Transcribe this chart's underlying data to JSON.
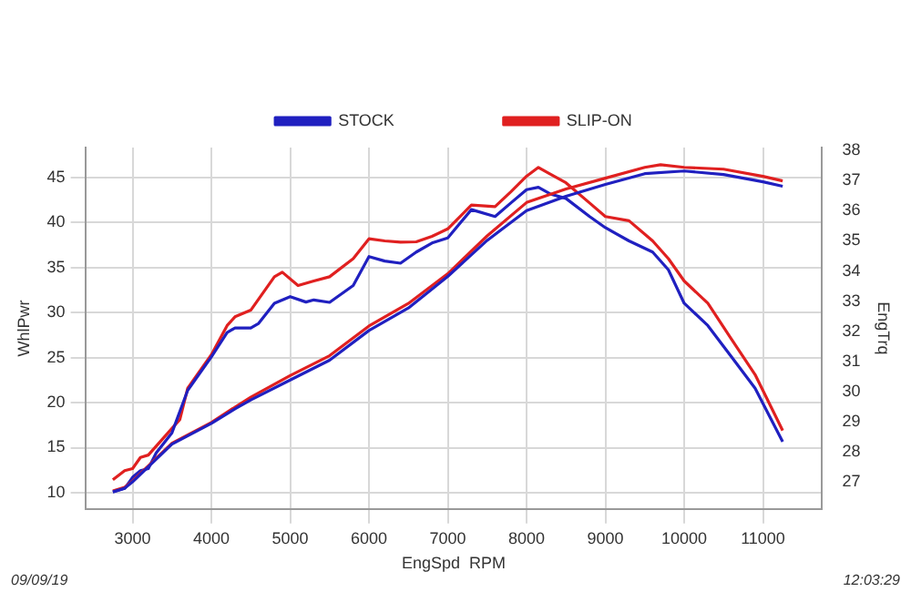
{
  "chart_data": {
    "type": "line",
    "xlabel": "EngSpd  RPM",
    "ylabel": "WhlPwr",
    "y2label": "EngTrq",
    "annotations": [
      "09/09/19",
      "12:03:29"
    ],
    "xlim": [
      2400,
      11750
    ],
    "xticks": [
      3000,
      4000,
      5000,
      6000,
      7000,
      8000,
      9000,
      10000,
      11000
    ],
    "ylim": [
      8.2,
      48.3
    ],
    "yticks": [
      10,
      15,
      20,
      25,
      30,
      35,
      40,
      45
    ],
    "y2lim": [
      26.1,
      38.1
    ],
    "y2ticks": [
      27,
      28,
      29,
      30,
      31,
      32,
      33,
      34,
      35,
      36,
      37,
      38
    ],
    "grid": true,
    "legend": "top",
    "marker": "none",
    "line_style": "solid",
    "series": [
      {
        "name": "STOCK",
        "color": "#2020c0",
        "x": [
          2750,
          2900,
          3000,
          3500,
          4000,
          4300,
          4500,
          5000,
          5500,
          6000,
          6500,
          7000,
          7500,
          8000,
          8500,
          9000,
          9500,
          10000,
          10500,
          11000,
          11250
        ],
        "values": [
          10.1,
          10.5,
          11.2,
          15.4,
          17.7,
          19.3,
          20.3,
          22.5,
          24.7,
          28.0,
          30.5,
          34.0,
          38.0,
          41.3,
          42.9,
          44.2,
          45.4,
          45.7,
          45.3,
          44.5,
          44.0
        ]
      },
      {
        "name": "SLIP-ON",
        "color": "#e02020",
        "x": [
          2750,
          2900,
          3000,
          3500,
          4000,
          4300,
          4500,
          5000,
          5500,
          6000,
          6500,
          7000,
          7500,
          8000,
          8500,
          9000,
          9500,
          9700,
          10000,
          10500,
          11000,
          11250
        ],
        "values": [
          10.2,
          10.6,
          11.3,
          15.5,
          17.8,
          19.5,
          20.6,
          23.0,
          25.2,
          28.5,
          31.0,
          34.3,
          38.5,
          42.2,
          43.7,
          44.9,
          46.1,
          46.4,
          46.1,
          45.9,
          45.1,
          44.6
        ]
      },
      {
        "color": "#2020c0",
        "axis": "y2",
        "x": [
          2750,
          2900,
          3000,
          3100,
          3200,
          3300,
          3500,
          3700,
          3800,
          4000,
          4200,
          4300,
          4500,
          4600,
          4800,
          5000,
          5200,
          5300,
          5500,
          5800,
          6000,
          6200,
          6400,
          6600,
          6800,
          7000,
          7300,
          7600,
          7800,
          8000,
          8150,
          8300,
          8500,
          8800,
          9000,
          9300,
          9600,
          9800,
          10000,
          10300,
          10600,
          10900,
          11250
        ],
        "values": [
          26.66,
          26.78,
          27.15,
          27.37,
          27.44,
          27.96,
          28.63,
          30.04,
          30.41,
          31.15,
          31.96,
          32.11,
          32.11,
          32.26,
          32.93,
          33.15,
          32.97,
          33.04,
          32.96,
          33.52,
          34.48,
          34.33,
          34.26,
          34.63,
          34.93,
          35.1,
          36.04,
          35.81,
          36.26,
          36.7,
          36.78,
          36.56,
          36.41,
          35.81,
          35.44,
          35.0,
          34.63,
          34.04,
          32.93,
          32.19,
          31.15,
          30.11,
          28.33
        ]
      },
      {
        "color": "#e02020",
        "axis": "y2",
        "x": [
          2750,
          2900,
          3000,
          3100,
          3200,
          3400,
          3600,
          3700,
          3800,
          4000,
          4200,
          4300,
          4500,
          4800,
          4900,
          5100,
          5300,
          5500,
          5800,
          6000,
          6200,
          6400,
          6600,
          6800,
          7000,
          7300,
          7600,
          7800,
          8000,
          8150,
          8300,
          8500,
          8800,
          9000,
          9300,
          9600,
          9800,
          10000,
          10300,
          10600,
          10900,
          11250
        ],
        "values": [
          27.07,
          27.37,
          27.44,
          27.81,
          27.89,
          28.48,
          29.07,
          30.11,
          30.48,
          31.22,
          32.19,
          32.48,
          32.7,
          33.81,
          33.96,
          33.52,
          33.67,
          33.81,
          34.41,
          35.07,
          35.0,
          34.96,
          34.97,
          35.15,
          35.4,
          36.19,
          36.14,
          36.63,
          37.15,
          37.44,
          37.22,
          36.93,
          36.26,
          35.81,
          35.67,
          35.0,
          34.41,
          33.67,
          32.93,
          31.74,
          30.56,
          28.7
        ]
      }
    ]
  }
}
